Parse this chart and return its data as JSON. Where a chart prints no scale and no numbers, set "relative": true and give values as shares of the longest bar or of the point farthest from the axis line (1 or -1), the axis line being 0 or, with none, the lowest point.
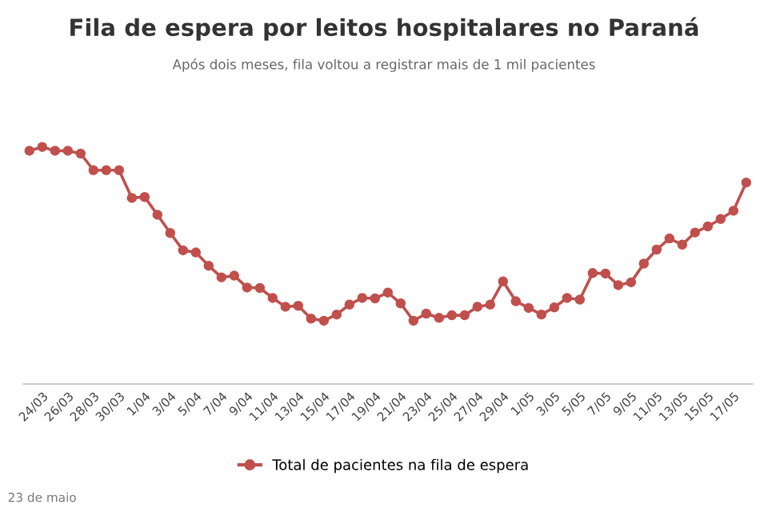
{
  "chart_data": {
    "type": "line",
    "title": "Fila de espera por leitos hospitalares no Paraná",
    "subtitle": "Após dois meses, fila voltou a registrar mais de 1 mil pacientes",
    "categories": [
      null,
      "24/03",
      null,
      "26/03",
      null,
      "28/03",
      null,
      "30/03",
      null,
      "1/04",
      null,
      "3/04",
      null,
      "5/04",
      null,
      "7/04",
      null,
      "9/04",
      null,
      "11/04",
      null,
      "13/04",
      null,
      "15/04",
      null,
      "17/04",
      null,
      "19/04",
      null,
      "21/04",
      null,
      "23/04",
      null,
      "25/04",
      null,
      "27/04",
      null,
      "29/04",
      null,
      "1/05",
      null,
      "3/05",
      null,
      "5/05",
      null,
      "7/05",
      null,
      "9/05",
      null,
      "11/05",
      null,
      "13/05",
      null,
      "15/05",
      null,
      "17/05",
      null
    ],
    "relative": true,
    "series": [
      {
        "name": "Total de pacientes na fila de espera",
        "color": "#c0504d",
        "values": [
          0.984,
          1,
          0.984,
          0.984,
          0.972,
          0.902,
          0.902,
          0.902,
          0.785,
          0.789,
          0.714,
          0.637,
          0.564,
          0.555,
          0.499,
          0.45,
          0.457,
          0.407,
          0.405,
          0.363,
          0.326,
          0.33,
          0.276,
          0.267,
          0.293,
          0.335,
          0.363,
          0.361,
          0.386,
          0.34,
          0.267,
          0.297,
          0.279,
          0.29,
          0.29,
          0.326,
          0.335,
          0.433,
          0.349,
          0.321,
          0.293,
          0.323,
          0.363,
          0.356,
          0.468,
          0.466,
          0.417,
          0.429,
          0.508,
          0.567,
          0.614,
          0.588,
          0.639,
          0.665,
          0.696,
          0.731,
          0.85
        ]
      }
    ],
    "marker": "circle",
    "line_style": "solid",
    "legend": "bottom",
    "annotations": [
      "23 de maio"
    ]
  }
}
